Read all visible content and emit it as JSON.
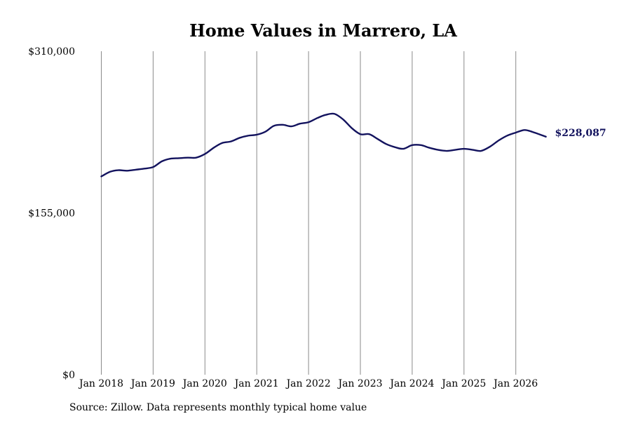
{
  "chart_data": {
    "type": "line",
    "title": "Home Values in Marrero, LA",
    "xlabel": "",
    "ylabel": "",
    "ylim": [
      0,
      310000
    ],
    "y_ticks": [
      {
        "value": 0,
        "label": "$0"
      },
      {
        "value": 155000,
        "label": "$155,000"
      },
      {
        "value": 310000,
        "label": "$310,000"
      }
    ],
    "x_ticks": [
      {
        "value": 2018,
        "label": "Jan 2018"
      },
      {
        "value": 2019,
        "label": "Jan 2019"
      },
      {
        "value": 2020,
        "label": "Jan 2020"
      },
      {
        "value": 2021,
        "label": "Jan 2021"
      },
      {
        "value": 2022,
        "label": "Jan 2022"
      },
      {
        "value": 2023,
        "label": "Jan 2023"
      },
      {
        "value": 2024,
        "label": "Jan 2024"
      },
      {
        "value": 2025,
        "label": "Jan 2025"
      },
      {
        "value": 2026,
        "label": "Jan 2026"
      }
    ],
    "xlim": [
      2018,
      2026.58
    ],
    "grid": {
      "vertical": true,
      "horizontal": false
    },
    "line_color": "#13135e",
    "end_label": "$228,087",
    "series": [
      {
        "x": [
          2018.0,
          2018.17,
          2018.33,
          2018.5,
          2018.67,
          2018.83,
          2019.0,
          2019.17,
          2019.33,
          2019.5,
          2019.67,
          2019.83,
          2020.0,
          2020.17,
          2020.33,
          2020.5,
          2020.67,
          2020.83,
          2021.0,
          2021.17,
          2021.33,
          2021.5,
          2021.67,
          2021.83,
          2022.0,
          2022.17,
          2022.33,
          2022.5,
          2022.67,
          2022.83,
          2023.0,
          2023.17,
          2023.33,
          2023.5,
          2023.67,
          2023.83,
          2024.0,
          2024.17,
          2024.33,
          2024.5,
          2024.67,
          2024.83,
          2025.0,
          2025.17,
          2025.33,
          2025.5,
          2025.67,
          2025.83,
          2026.0,
          2026.17,
          2026.33,
          2026.58
        ],
        "y": [
          190000,
          194500,
          196000,
          195500,
          196500,
          197500,
          199000,
          204500,
          207000,
          207500,
          208000,
          208000,
          211500,
          217500,
          222000,
          223500,
          227000,
          229000,
          230000,
          233000,
          238500,
          239500,
          238000,
          240500,
          242000,
          246000,
          249000,
          250000,
          244500,
          236500,
          230500,
          230500,
          226000,
          221000,
          218000,
          216500,
          220000,
          220000,
          217500,
          215500,
          214500,
          215500,
          216500,
          215500,
          214500,
          218500,
          224500,
          229000,
          232000,
          234500,
          232500,
          228087
        ]
      }
    ]
  },
  "source": "Source: Zillow. Data represents monthly typical home value"
}
